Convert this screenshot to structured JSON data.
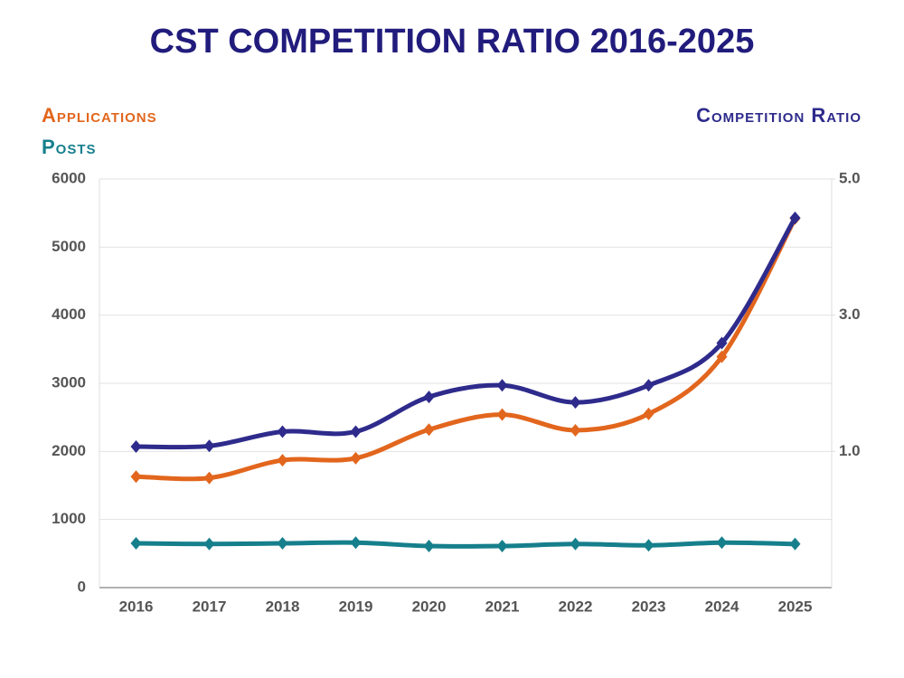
{
  "chart_data": {
    "type": "line",
    "title": "CST COMPETITION RATIO 2016-2025",
    "categories": [
      "2016",
      "2017",
      "2018",
      "2019",
      "2020",
      "2021",
      "2022",
      "2023",
      "2024",
      "2025"
    ],
    "series": [
      {
        "name": "Applications",
        "color": "#e2661d",
        "values": [
          1630,
          1610,
          1870,
          1900,
          2320,
          2540,
          2310,
          2550,
          3390,
          5420
        ]
      },
      {
        "name": "Posts",
        "color": "#167f8c",
        "values": [
          650,
          640,
          650,
          660,
          610,
          610,
          640,
          620,
          660,
          640
        ]
      },
      {
        "name": "Competition Ratio",
        "color": "#2e2b8c",
        "axis": "y2",
        "values": [
          1.07,
          1.08,
          1.29,
          1.29,
          1.8,
          1.97,
          1.72,
          1.97,
          2.59,
          4.43
        ]
      }
    ],
    "ylim": [
      0,
      6000
    ],
    "yticks": [
      0,
      1000,
      2000,
      3000,
      4000,
      5000,
      6000
    ],
    "y2lim": [
      -1,
      5
    ],
    "y2ticks": [
      {
        "value": 1,
        "label": "1.0"
      },
      {
        "value": 3,
        "label": "3.0"
      },
      {
        "value": 5,
        "label": "5.0"
      }
    ],
    "grid": true
  }
}
